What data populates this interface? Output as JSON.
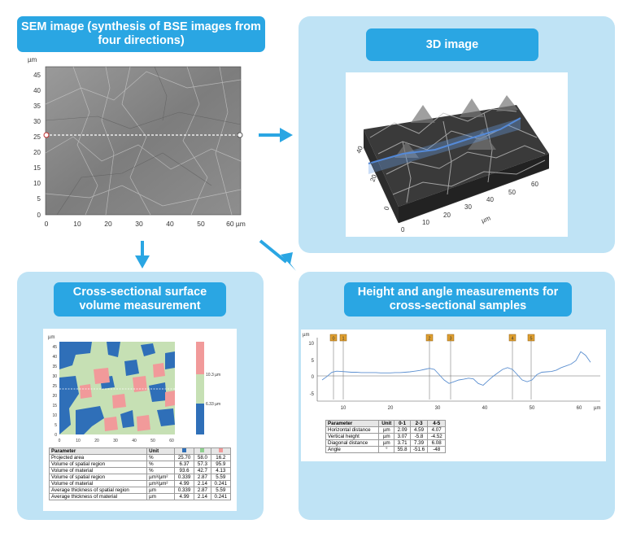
{
  "sem": {
    "title": "SEM image (synthesis of BSE images from four directions)",
    "unit_top": "µm",
    "y_ticks": [
      "45",
      "40",
      "35",
      "30",
      "25",
      "20",
      "15",
      "10",
      "5",
      "0"
    ],
    "x_ticks": [
      "0",
      "10",
      "20",
      "30",
      "40",
      "50",
      "60 µm"
    ]
  },
  "image3d": {
    "title": "3D image",
    "axis_ticks_left": [
      "40",
      "20",
      "0"
    ],
    "axis_ticks_right": [
      "0",
      "10",
      "20",
      "30",
      "40",
      "50",
      "60"
    ],
    "axis_unit": "µm"
  },
  "volume": {
    "title": "Cross-sectional surface volume measurement",
    "map_unit": "µm",
    "y_ticks": [
      "45",
      "40",
      "35",
      "30",
      "25",
      "20",
      "15",
      "10",
      "5",
      "0"
    ],
    "x_ticks": [
      "0",
      "10",
      "20",
      "30",
      "40",
      "50",
      "60"
    ],
    "scale_labels": [
      "10.3 µm",
      "6.33 µm"
    ],
    "colors": {
      "blue": "#2f6fb8",
      "green": "#c6e0b4",
      "pink": "#f19a9a"
    },
    "table": {
      "headers": [
        "Parameter",
        "Unit",
        "",
        "",
        ""
      ],
      "rows": [
        [
          "Projected area",
          "%",
          "25.70",
          "58.0",
          "16.2"
        ],
        [
          "Volume of spatial region",
          "%",
          "6.37",
          "57.3",
          "95.9"
        ],
        [
          "Volume of material",
          "%",
          "93.6",
          "42.7",
          "4.13"
        ],
        [
          "Volume of spatial region",
          "µm³/µm²",
          "0.339",
          "2.87",
          "5.59"
        ],
        [
          "Volume of material",
          "µm³/µm²",
          "4.99",
          "2.14",
          "0.241"
        ],
        [
          "Average thickness of spatial region",
          "µm",
          "0.339",
          "2.87",
          "5.59"
        ],
        [
          "Average thickness of material",
          "µm",
          "4.99",
          "2.14",
          "0.241"
        ]
      ]
    }
  },
  "height": {
    "title": "Height and angle measurements for cross-sectional samples",
    "y_unit": "µm",
    "y_ticks": [
      "10",
      "5",
      "0",
      "-5"
    ],
    "x_ticks": [
      "10",
      "20",
      "30",
      "40",
      "50",
      "60"
    ],
    "x_unit": "µm",
    "markers": [
      "0",
      "1",
      "2",
      "3",
      "4",
      "5"
    ],
    "table": {
      "headers": [
        "Parameter",
        "Unit",
        "0-1",
        "2-3",
        "4-5"
      ],
      "rows": [
        [
          "Horizontal distance",
          "µm",
          "2.09",
          "4.59",
          "4.07"
        ],
        [
          "Vertical height",
          "µm",
          "3.07",
          "-5.8",
          "-4.52"
        ],
        [
          "Diagonal distance",
          "µm",
          "3.71",
          "7.39",
          "6.08"
        ],
        [
          "Angle",
          "°",
          "55.8",
          "-51.6",
          "-48"
        ]
      ]
    }
  },
  "chart_data": {
    "type": "line",
    "x": [
      7,
      8,
      9,
      10,
      11,
      12,
      13,
      14,
      15,
      16,
      17,
      18,
      19,
      20,
      21,
      22,
      23,
      24,
      25,
      26,
      27,
      28,
      29,
      30,
      31,
      32,
      33,
      34,
      35,
      36,
      37,
      38,
      39,
      40,
      41,
      42,
      43,
      44,
      45,
      46,
      47,
      48,
      49,
      50,
      51,
      52,
      53,
      54,
      55,
      56,
      57,
      58,
      59,
      60,
      61,
      62
    ],
    "values": [
      -1,
      0,
      1.2,
      1.5,
      1.4,
      1.3,
      1.2,
      1.2,
      1.1,
      1.1,
      1.1,
      1.1,
      1.0,
      1.0,
      1.0,
      1.1,
      1.1,
      1.2,
      1.3,
      1.5,
      1.7,
      2.0,
      2.3,
      2.0,
      0.5,
      -1,
      -2,
      -1.5,
      -1,
      -0.8,
      -0.5,
      -0.7,
      -2,
      -2.5,
      -1.2,
      0,
      1,
      2,
      2.5,
      2,
      0.5,
      -1,
      -1.5,
      -1,
      0.5,
      1.2,
      1.3,
      1.4,
      1.8,
      2.5,
      3.0,
      3.5,
      4.5,
      7,
      6,
      4
    ],
    "xlabel": "µm",
    "ylabel": "µm",
    "ylim": [
      -7,
      11
    ],
    "xlim": [
      6,
      64
    ]
  }
}
